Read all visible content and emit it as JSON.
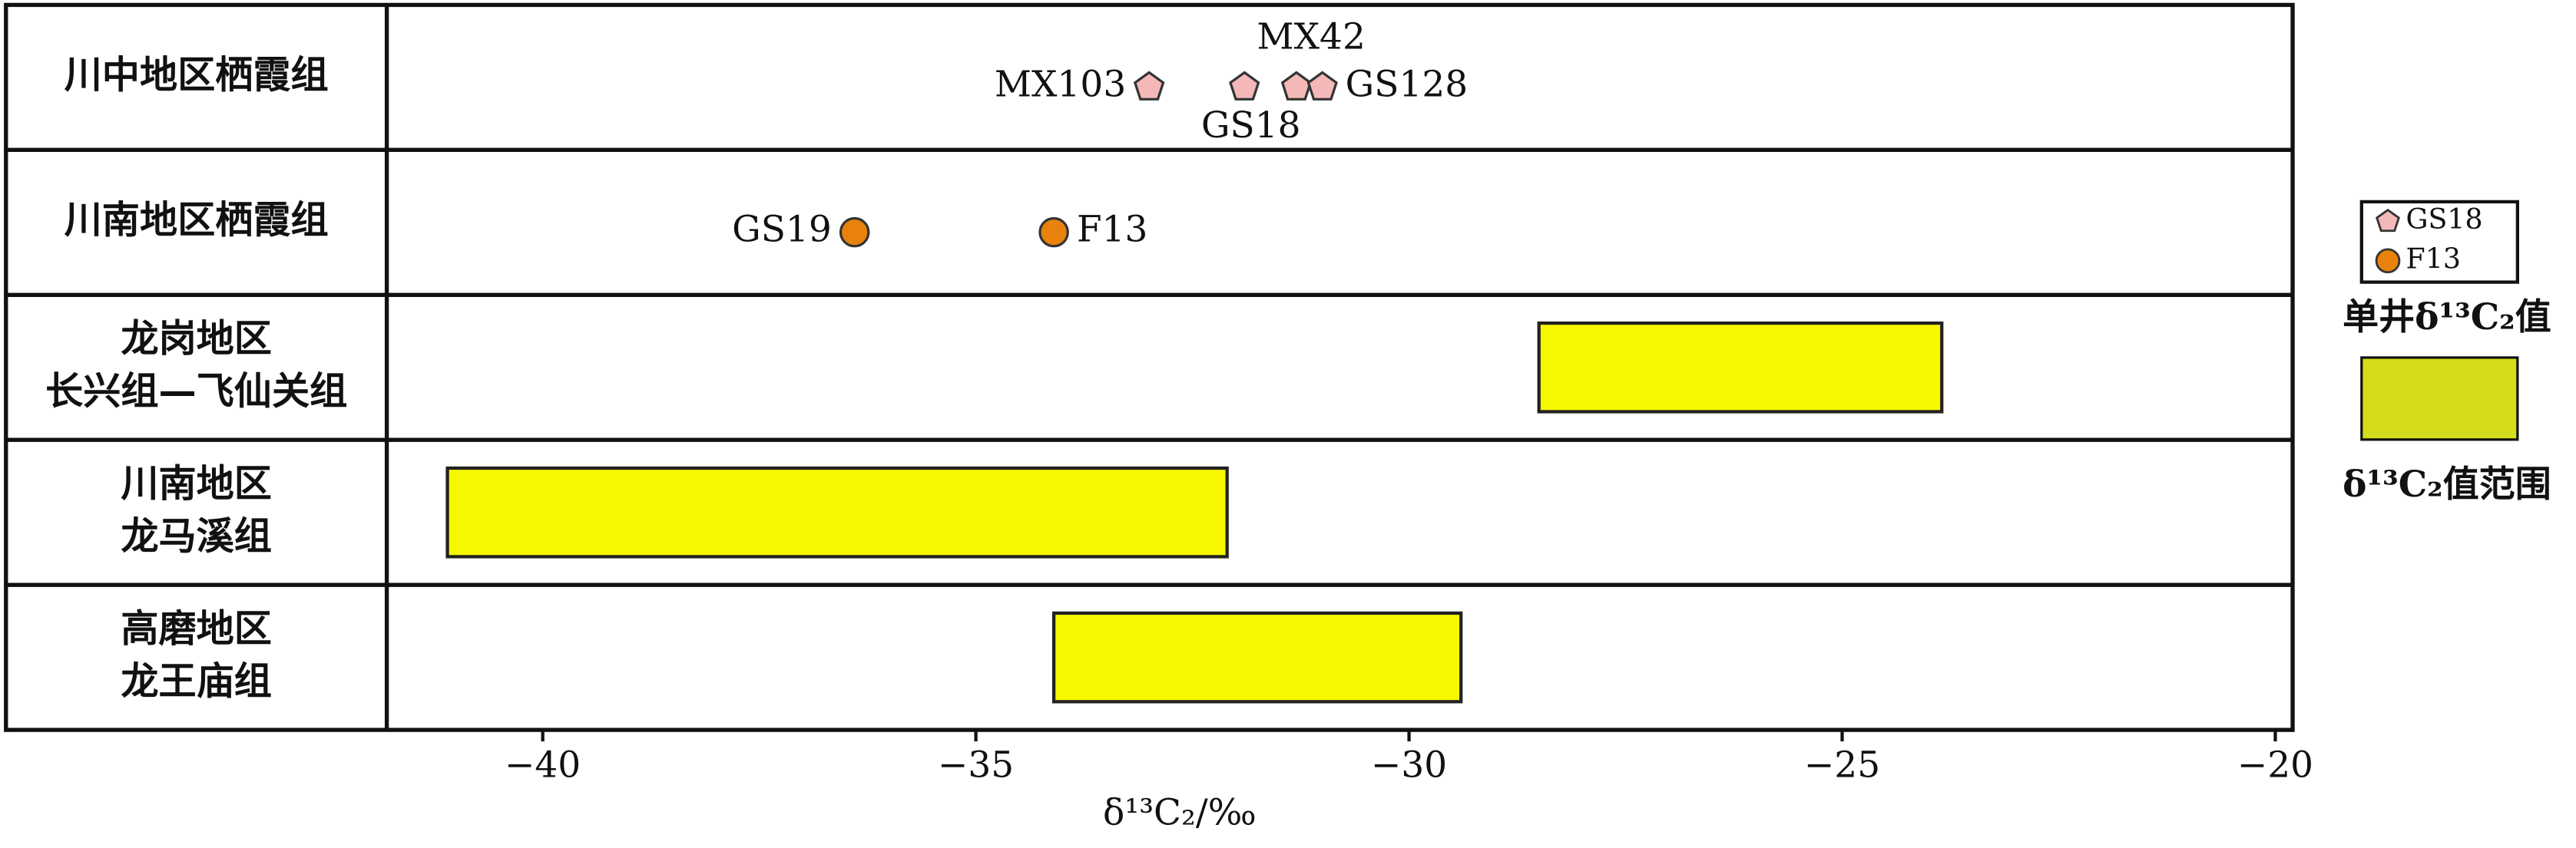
{
  "chart_data": {
    "type": "range",
    "rows": [
      {
        "label": [
          "川中地区栖霞组"
        ],
        "points": [
          {
            "name": "MX103",
            "value": -33.0
          },
          {
            "name": "GS18",
            "value": -31.9
          },
          {
            "name": "MX42",
            "value": -31.3
          },
          {
            "name": "GS128",
            "value": -31.0
          }
        ]
      },
      {
        "label": [
          "川南地区栖霞组"
        ],
        "points": [
          {
            "name": "GS19",
            "value": -36.4
          },
          {
            "name": "F13",
            "value": -34.1
          }
        ]
      },
      {
        "label": [
          "龙岗地区",
          "长兴组—飞仙关组"
        ],
        "range": [
          -28.5,
          -23.85
        ]
      },
      {
        "label": [
          "川南地区",
          "龙马溪组"
        ],
        "range": [
          -41.1,
          -32.1
        ]
      },
      {
        "label": [
          "高磨地区",
          "龙王庙组"
        ],
        "range": [
          -34.1,
          -29.4
        ]
      }
    ],
    "xlim": [
      -41.8,
      -19.8
    ],
    "xticks": [
      {
        "value": -40,
        "label": "−40"
      },
      {
        "value": -35,
        "label": "−35"
      },
      {
        "value": -30,
        "label": "−30"
      },
      {
        "value": -25,
        "label": "−25"
      },
      {
        "value": -20,
        "label": "−20"
      }
    ],
    "xlabel": "δ¹³C₂/‰",
    "colors": {
      "pentagon": "#f4b8b8",
      "circle": "#e8820c",
      "range": "#f7f700",
      "legend_range": "#d4dc1c"
    },
    "legend": {
      "items": [
        {
          "name": "GS18",
          "marker": "pentagon"
        },
        {
          "name": "F13",
          "marker": "circle"
        }
      ],
      "points_caption": "单井δ¹³C₂值",
      "range_caption": "δ¹³C₂值范围"
    }
  }
}
